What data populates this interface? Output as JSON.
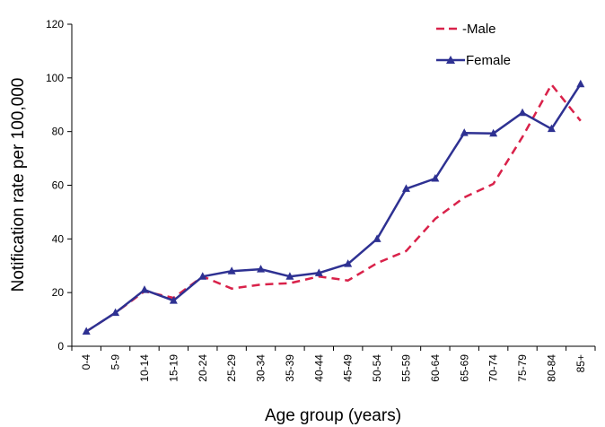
{
  "chart_data": {
    "type": "line",
    "xlabel": "Age group (years)",
    "ylabel": "Notification rate per 100,000",
    "ylim": [
      0,
      120
    ],
    "yticks": [
      0,
      20,
      40,
      60,
      80,
      100,
      120
    ],
    "grid": false,
    "legend_position": "top-right",
    "categories": [
      "0-4",
      "5-9",
      "10-14",
      "15-19",
      "20-24",
      "25-29",
      "30-34",
      "35-39",
      "40-44",
      "45-49",
      "50-54",
      "55-59",
      "60-64",
      "65-69",
      "70-74",
      "75-79",
      "80-84",
      "85+"
    ],
    "series": [
      {
        "name": "Male",
        "legend_label": "-Male",
        "style": "dashed",
        "marker": "none",
        "color": "#D9224A",
        "values": [
          5.5,
          12.5,
          20.5,
          18,
          26,
          21.5,
          23,
          23.5,
          26,
          24.5,
          31,
          35.5,
          47.5,
          55.5,
          60.5,
          78,
          97.5,
          84
        ]
      },
      {
        "name": "Female",
        "legend_label": "Female",
        "style": "solid",
        "marker": "triangle",
        "color": "#2E3192",
        "values": [
          5.5,
          12.5,
          21,
          17,
          26,
          28,
          28.7,
          26,
          27.3,
          30.7,
          40,
          58.7,
          62.5,
          79.5,
          79.3,
          87,
          81,
          97.7
        ]
      }
    ]
  }
}
